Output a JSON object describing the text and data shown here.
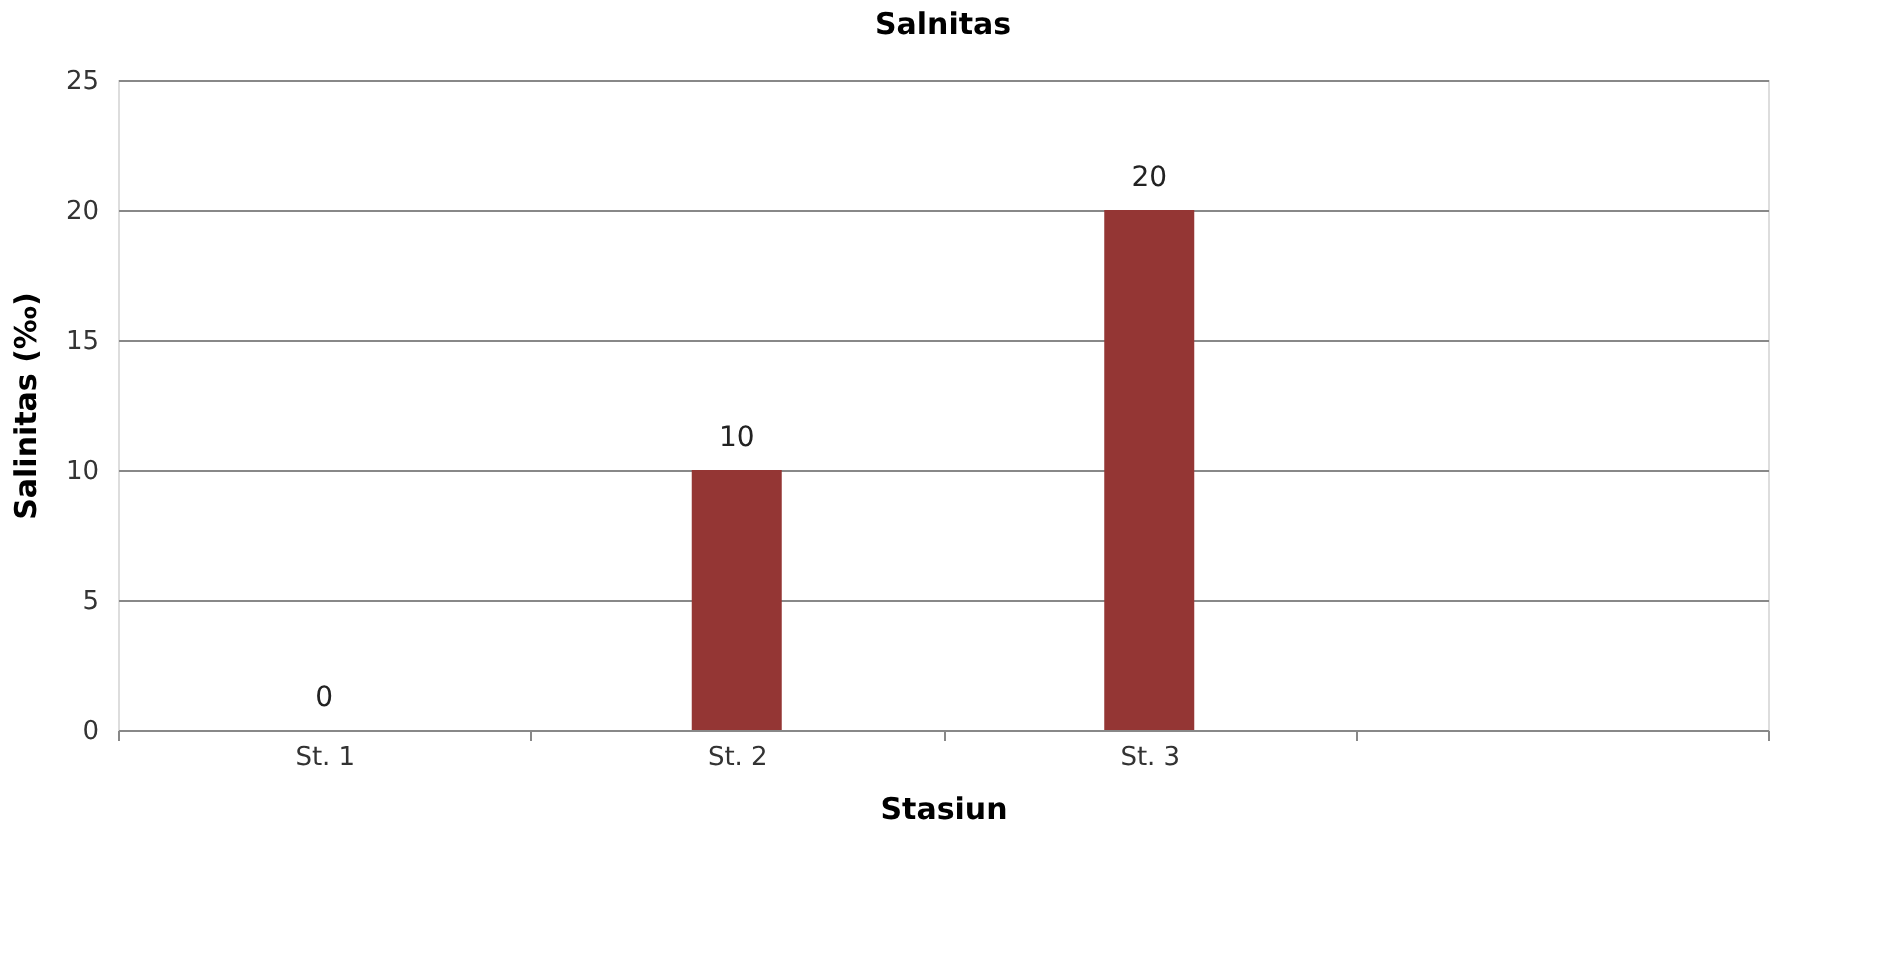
{
  "chart_data": {
    "type": "bar",
    "title": "Salnitas",
    "xlabel": "Stasiun",
    "ylabel": "Salinitas (‰)",
    "categories": [
      "St. 1",
      "St. 2",
      "St. 3",
      null
    ],
    "values": [
      0,
      10,
      20,
      null
    ],
    "color": "#943634",
    "ylim": [
      0,
      25
    ],
    "yticks": [
      0,
      5,
      10,
      15,
      20,
      25
    ],
    "grid": "y",
    "data_labels": true
  }
}
